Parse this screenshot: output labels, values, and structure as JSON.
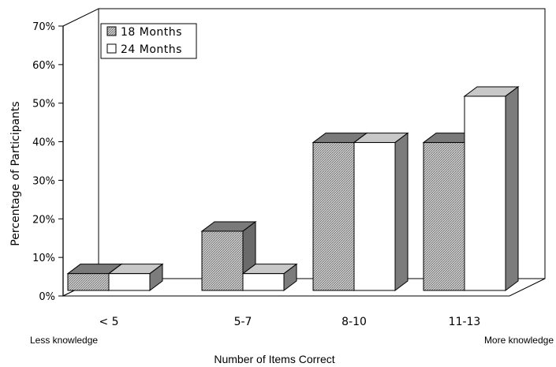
{
  "chart_data": {
    "type": "bar",
    "title": "",
    "xlabel": "Number of Items Correct",
    "ylabel": "Percentage of Participants",
    "categories": [
      "< 5",
      "5-7",
      "8-10",
      "11-13"
    ],
    "series": [
      {
        "name": "18 Months",
        "values": [
          6,
          17,
          40,
          40
        ]
      },
      {
        "name": "24 Months",
        "values": [
          6,
          6,
          40,
          52
        ]
      }
    ],
    "ylim": [
      0,
      70
    ],
    "yticks": [
      "0%",
      "10%",
      "20%",
      "30%",
      "40%",
      "50%",
      "60%",
      "70%"
    ],
    "annotations": {
      "left": "Less knowledge",
      "right": "More knowledge"
    },
    "legend_position": "top-left",
    "grid": false,
    "colors": {
      "18 Months": {
        "front": "#b4b4b4",
        "top": "#7a7a7a",
        "side": "#6a6a6a"
      },
      "24 Months": {
        "front": "#ffffff",
        "top": "#c8c8c8",
        "side": "#7c7c7c"
      }
    }
  }
}
